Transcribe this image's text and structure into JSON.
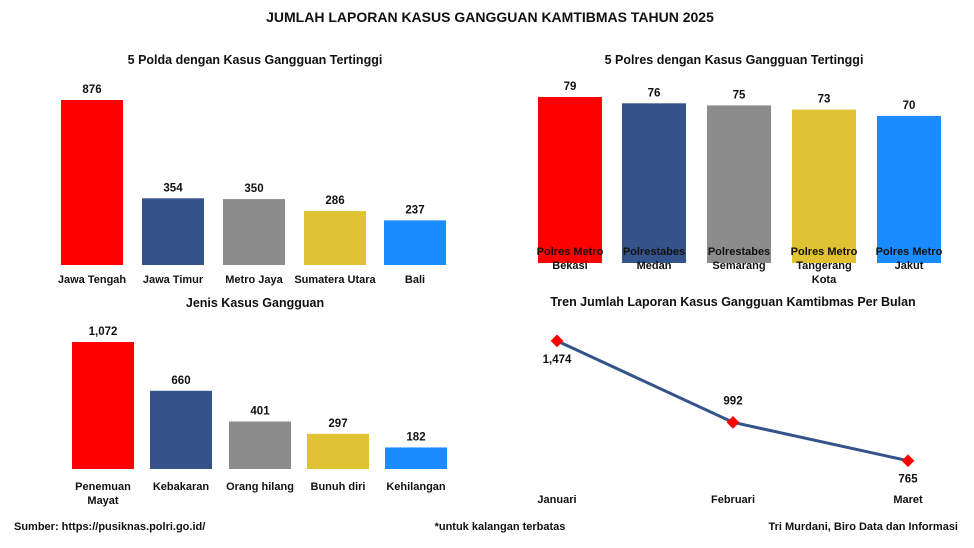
{
  "title": "JUMLAH LAPORAN KASUS GANGGUAN KAMTIBMAS TAHUN 2025",
  "footer": {
    "source": "Sumber: https://pusiknas.polri.go.id/",
    "note": "*untuk kalangan terbatas",
    "author": "Tri Murdani, Biro Data dan Informasi"
  },
  "colors": [
    "#ff0000",
    "#34538a",
    "#8c8c8c",
    "#e1c232",
    "#1a8cff"
  ],
  "chart_data": [
    {
      "type": "bar",
      "title": "5 Polda dengan Kasus Gangguan Tertinggi",
      "categories": [
        [
          "Jawa Tengah"
        ],
        [
          "Jawa Timur"
        ],
        [
          "Metro Jaya"
        ],
        [
          "Sumatera Utara"
        ],
        [
          "Bali"
        ]
      ],
      "values": [
        876,
        354,
        350,
        286,
        237
      ],
      "value_labels": [
        "876",
        "354",
        "350",
        "286",
        "237"
      ],
      "ylim": [
        0,
        876
      ]
    },
    {
      "type": "bar",
      "title": "5 Polres dengan Kasus Gangguan Tertinggi",
      "categories": [
        [
          "Polres Metro",
          "Bekasi"
        ],
        [
          "Polrestabes",
          "Medan"
        ],
        [
          "Polrestabes",
          "Semarang"
        ],
        [
          "Polres Metro",
          "Tangerang",
          "Kota"
        ],
        [
          "Polres Metro",
          "Jakut"
        ]
      ],
      "values": [
        79,
        76,
        75,
        73,
        70
      ],
      "value_labels": [
        "79",
        "76",
        "75",
        "73",
        "70"
      ],
      "ylim": [
        0,
        79
      ]
    },
    {
      "type": "bar",
      "title": "Jenis Kasus Gangguan",
      "categories": [
        [
          "Penemuan",
          "Mayat"
        ],
        [
          "Kebakaran"
        ],
        [
          "Orang hilang"
        ],
        [
          "Bunuh diri"
        ],
        [
          "Kehilangan"
        ]
      ],
      "values": [
        1072,
        660,
        401,
        297,
        182
      ],
      "value_labels": [
        "1,072",
        "660",
        "401",
        "297",
        "182"
      ],
      "ylim": [
        0,
        1072
      ]
    },
    {
      "type": "line",
      "title": "Tren Jumlah Laporan Kasus Gangguan Kamtibmas Per Bulan",
      "categories": [
        "Januari",
        "Februari",
        "Maret"
      ],
      "values": [
        1474,
        992,
        765
      ],
      "value_labels": [
        "1,474",
        "992",
        "765"
      ],
      "line_color": "#34538a",
      "marker_color": "#ff0000"
    }
  ]
}
